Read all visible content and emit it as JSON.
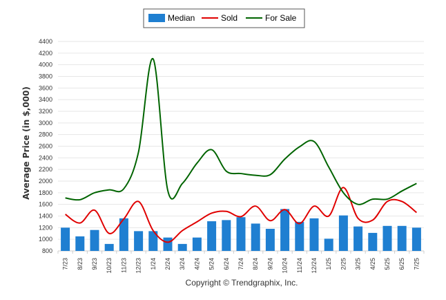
{
  "chart_data": {
    "type": "bar",
    "categories": [
      "7/23",
      "8/23",
      "9/23",
      "10/23",
      "11/23",
      "12/23",
      "1/24",
      "2/24",
      "3/24",
      "4/24",
      "5/24",
      "6/24",
      "7/24",
      "8/24",
      "9/24",
      "10/24",
      "11/24",
      "12/24",
      "1/25",
      "2/25",
      "3/25",
      "4/25",
      "5/25",
      "6/25",
      "7/25"
    ],
    "ylabel": "Average Price (in $,000)",
    "ylim": [
      800,
      4400
    ],
    "yticks": [
      800,
      1000,
      1200,
      1400,
      1600,
      1800,
      2000,
      2200,
      2400,
      2600,
      2800,
      3000,
      3200,
      3400,
      3600,
      3800,
      4000,
      4200,
      4400
    ],
    "grid": true,
    "legend": "top-center",
    "series": [
      {
        "name": "Median",
        "type": "bar",
        "color": "#1f7fd1",
        "values": [
          1200,
          1050,
          1160,
          920,
          1360,
          1140,
          1140,
          1030,
          920,
          1030,
          1310,
          1330,
          1380,
          1270,
          1180,
          1520,
          1300,
          1360,
          1010,
          1410,
          1220,
          1110,
          1230,
          1230,
          1200
        ]
      },
      {
        "name": "Sold",
        "type": "line",
        "color": "#e00000",
        "values": [
          1430,
          1280,
          1500,
          1100,
          1350,
          1650,
          1150,
          950,
          1150,
          1300,
          1450,
          1480,
          1390,
          1570,
          1320,
          1510,
          1270,
          1570,
          1400,
          1890,
          1360,
          1330,
          1650,
          1650,
          1460
        ]
      },
      {
        "name": "For Sale",
        "type": "line",
        "color": "#006400",
        "values": [
          1710,
          1680,
          1800,
          1850,
          1870,
          2500,
          4100,
          1840,
          1960,
          2310,
          2540,
          2170,
          2130,
          2100,
          2110,
          2380,
          2590,
          2680,
          2240,
          1800,
          1600,
          1690,
          1690,
          1830,
          1960
        ]
      }
    ]
  },
  "copyright": "Copyright © Trendgraphix, Inc."
}
